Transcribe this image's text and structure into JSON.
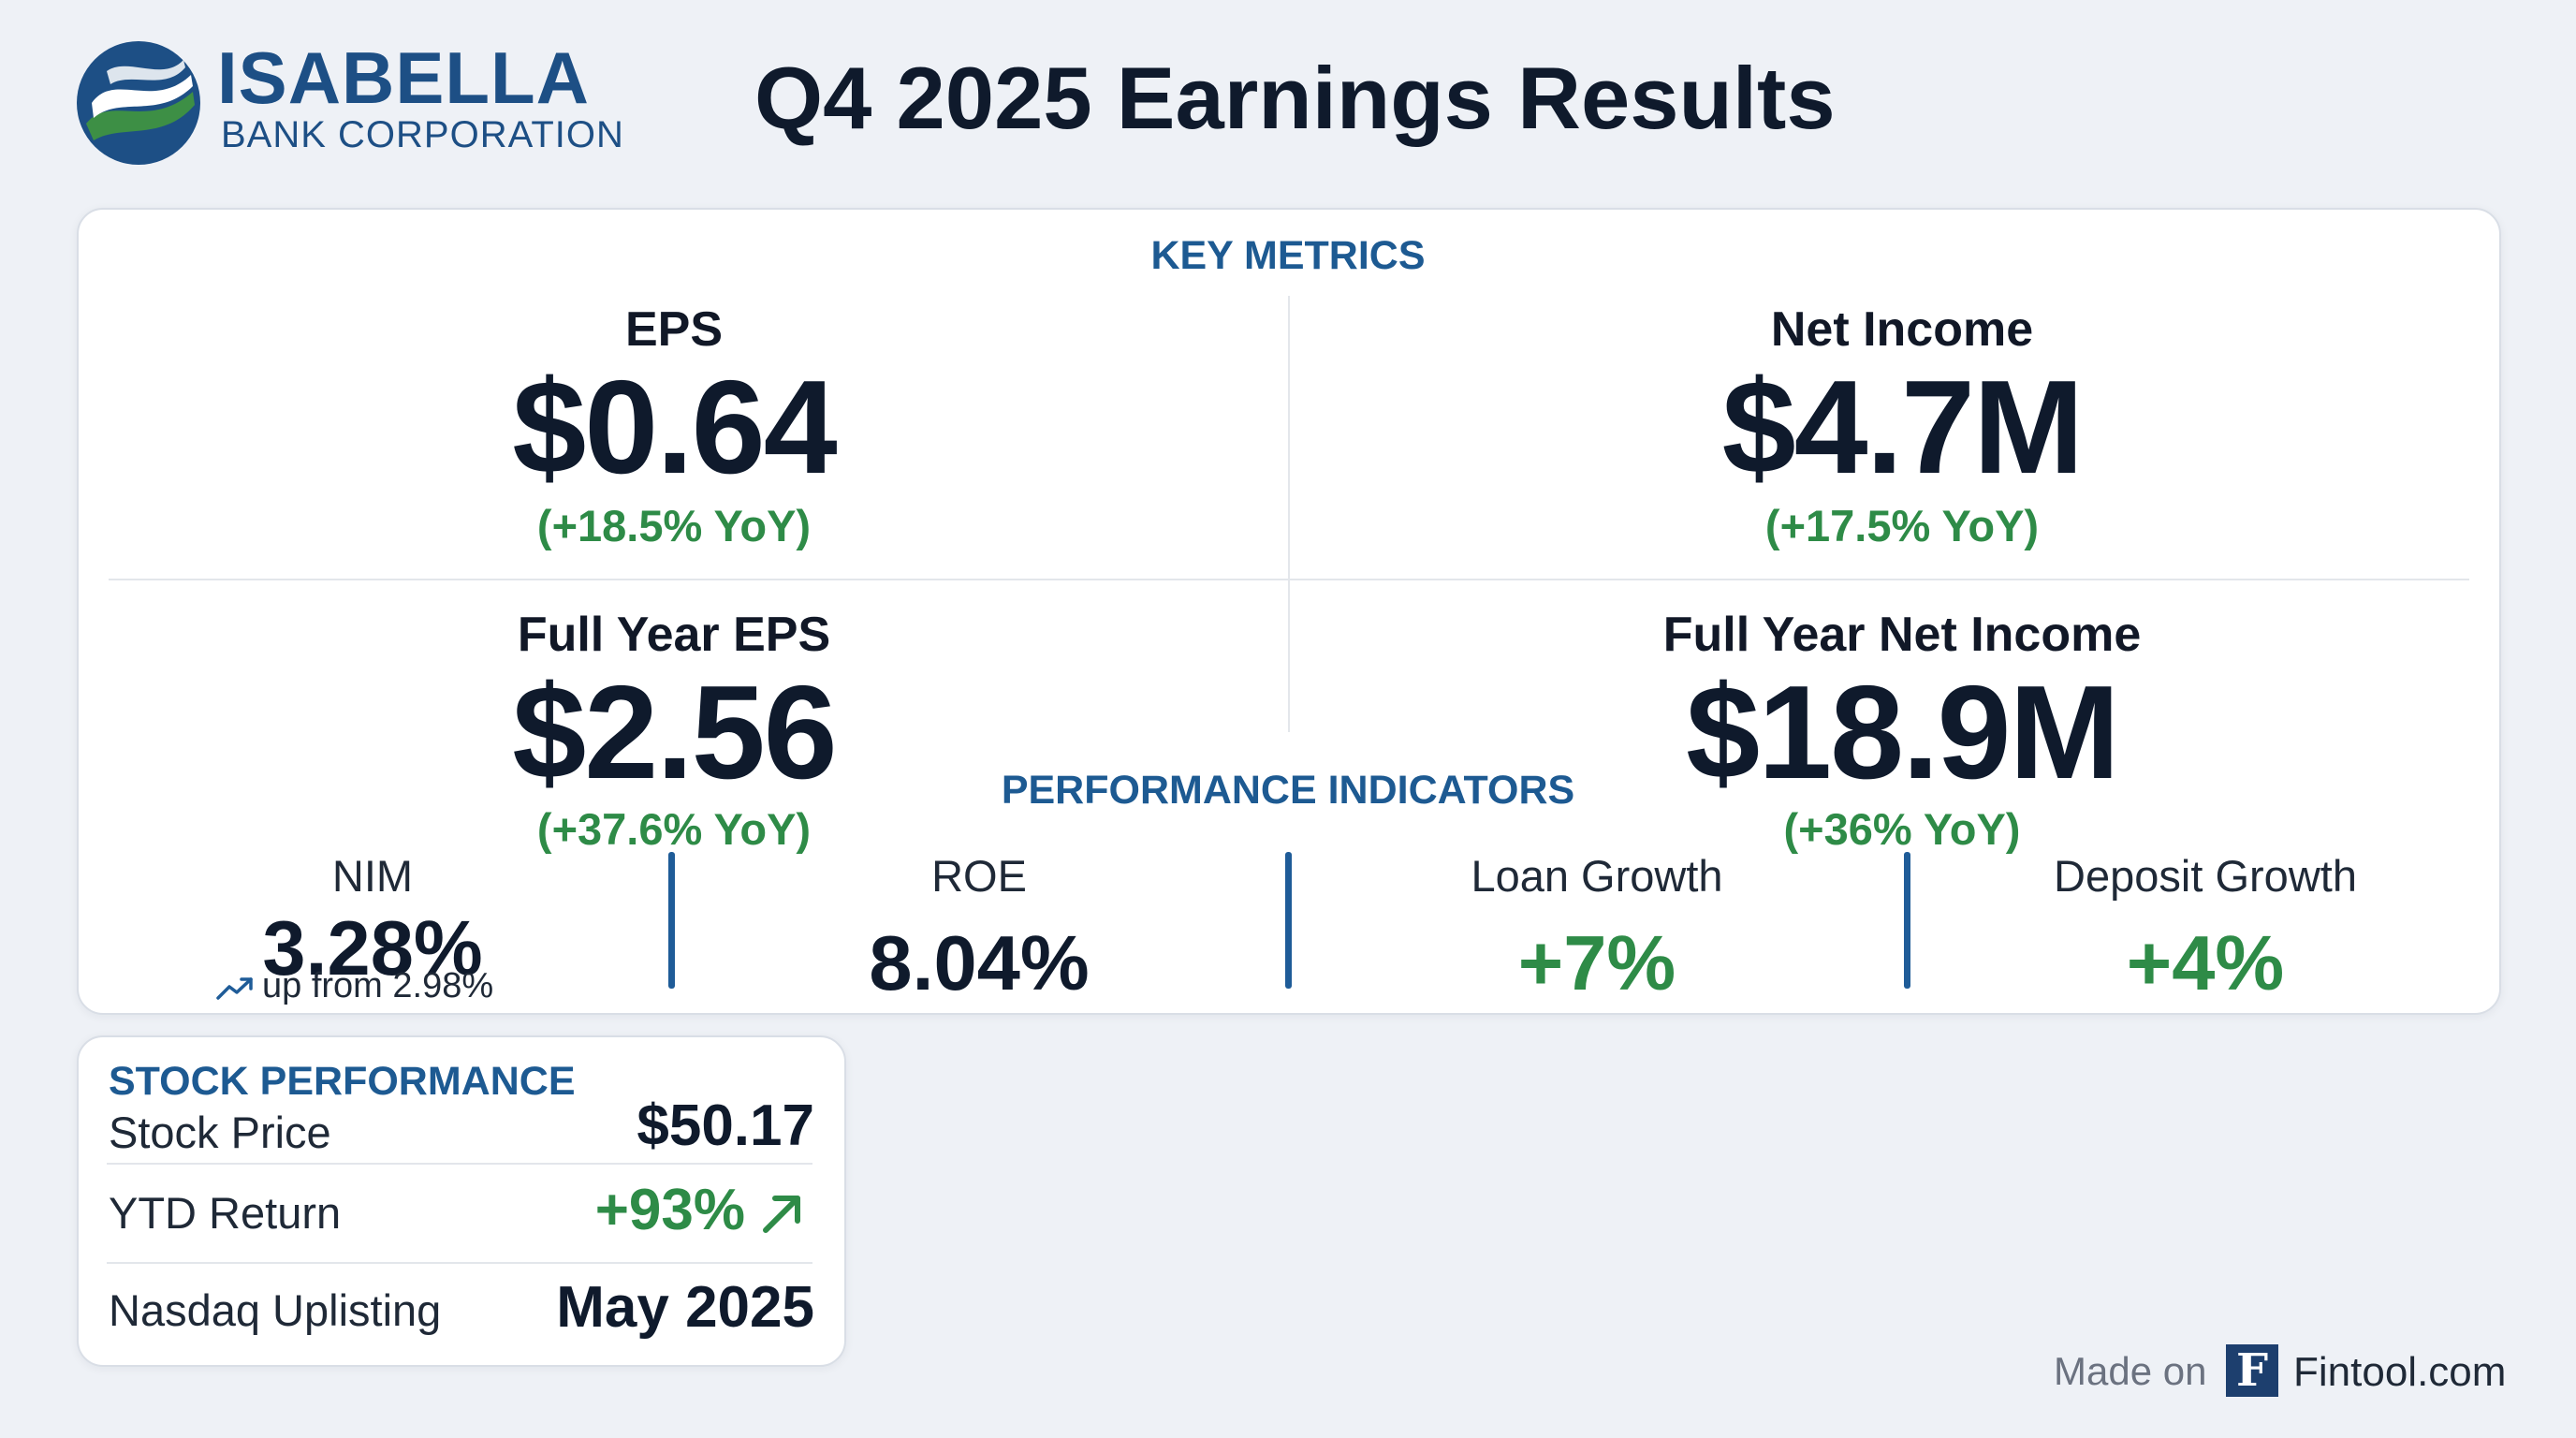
{
  "brand": {
    "name": "ISABELLA",
    "subtitle": "BANK CORPORATION",
    "colors": {
      "primary": "#1d4f85",
      "accent_green": "#2e8b47"
    }
  },
  "title": "Q4 2025 Earnings Results",
  "key_metrics": {
    "title": "KEY METRICS",
    "items": [
      {
        "label": "EPS",
        "value": "$0.64",
        "change": "(+18.5% YoY)"
      },
      {
        "label": "Net Income",
        "value": "$4.7M",
        "change": "(+17.5% YoY)"
      },
      {
        "label": "Full Year EPS",
        "value": "$2.56",
        "change": "(+37.6% YoY)"
      },
      {
        "label": "Full Year Net Income",
        "value": "$18.9M",
        "change": "(+36% YoY)"
      }
    ]
  },
  "performance": {
    "title": "PERFORMANCE INDICATORS",
    "items": [
      {
        "label": "NIM",
        "value": "3.28%",
        "sub": "up from 2.98%",
        "sub_icon": "trending-up-icon"
      },
      {
        "label": "ROE",
        "value": "8.04%"
      },
      {
        "label": "Loan Growth",
        "value": "+7%"
      },
      {
        "label": "Deposit Growth",
        "value": "+4%"
      }
    ]
  },
  "stock": {
    "title": "STOCK PERFORMANCE",
    "rows": [
      {
        "label": "Stock Price",
        "value": "$50.17"
      },
      {
        "label": "YTD Return",
        "value": "+93%",
        "icon": "arrow-up-right-icon"
      },
      {
        "label": "Nasdaq Uplisting",
        "value": "May 2025"
      }
    ]
  },
  "footer": {
    "made_on": "Made on",
    "logo_letter": "F",
    "site": "Fintool.com"
  }
}
